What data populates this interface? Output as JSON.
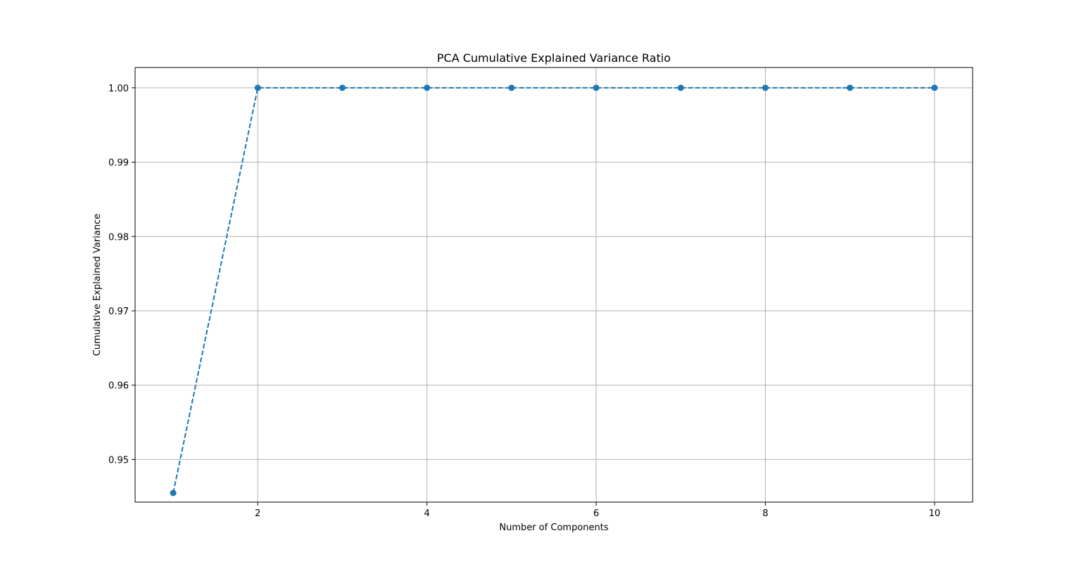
{
  "chart_data": {
    "type": "line",
    "title": "PCA Cumulative Explained Variance Ratio",
    "xlabel": "Number of Components",
    "ylabel": "Cumulative Explained Variance",
    "x": [
      1,
      2,
      3,
      4,
      5,
      6,
      7,
      8,
      9,
      10
    ],
    "series": [
      {
        "values": [
          0.9455,
          1.0,
          1.0,
          1.0,
          1.0,
          1.0,
          1.0,
          1.0,
          1.0,
          1.0
        ],
        "color": "#1f77b4",
        "line_style": "dashed",
        "marker": "circle"
      }
    ],
    "xlim": [
      0.55,
      10.45
    ],
    "ylim": [
      0.94427,
      1.00273
    ],
    "xticks": [
      2,
      4,
      6,
      8,
      10
    ],
    "xtick_labels": [
      "2",
      "4",
      "6",
      "8",
      "10"
    ],
    "yticks": [
      0.95,
      0.96,
      0.97,
      0.98,
      0.99,
      1.0
    ],
    "ytick_labels": [
      "0.95",
      "0.96",
      "0.97",
      "0.98",
      "0.99",
      "1.00"
    ],
    "grid": true,
    "grid_color": "#b0b0b0",
    "legend": false
  }
}
